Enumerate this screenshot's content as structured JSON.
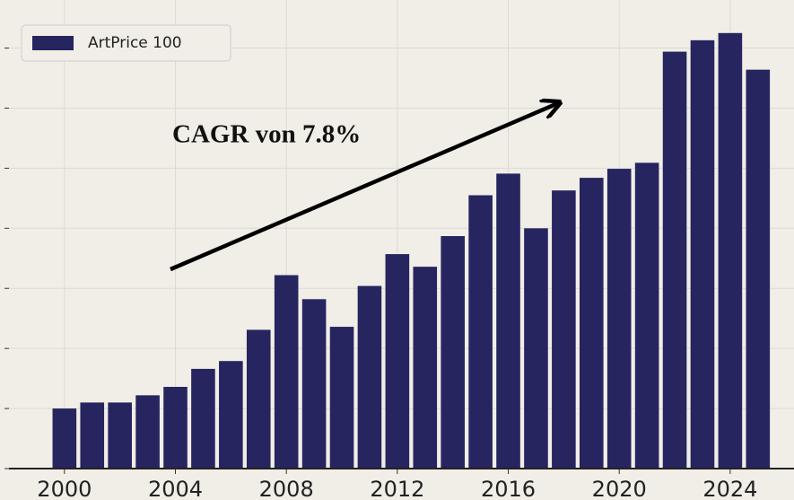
{
  "chart_data": {
    "type": "bar",
    "x": [
      2000,
      2001,
      2002,
      2003,
      2004,
      2005,
      2006,
      2007,
      2008,
      2009,
      2010,
      2011,
      2012,
      2013,
      2014,
      2015,
      2016,
      2017,
      2018,
      2019,
      2020,
      2021,
      2022,
      2023,
      2024,
      2025
    ],
    "series": [
      {
        "name": "ArtPrice 100",
        "color": "#262560",
        "values": [
          100,
          110,
          110,
          122,
          136,
          166,
          179,
          231,
          322,
          282,
          236,
          304,
          357,
          336,
          387,
          455,
          491,
          400,
          463,
          484,
          499,
          509,
          694,
          713,
          725,
          664
        ]
      }
    ],
    "xlim": [
      1998,
      2026.3
    ],
    "xticks": [
      2000,
      2004,
      2008,
      2012,
      2016,
      2020,
      2024
    ],
    "ylim": [
      0,
      780
    ],
    "yticks": [
      0,
      100,
      200,
      300,
      400,
      500,
      600,
      700
    ],
    "grid": true,
    "legend": "upper left",
    "annotation": "CAGR von 7.8%"
  }
}
